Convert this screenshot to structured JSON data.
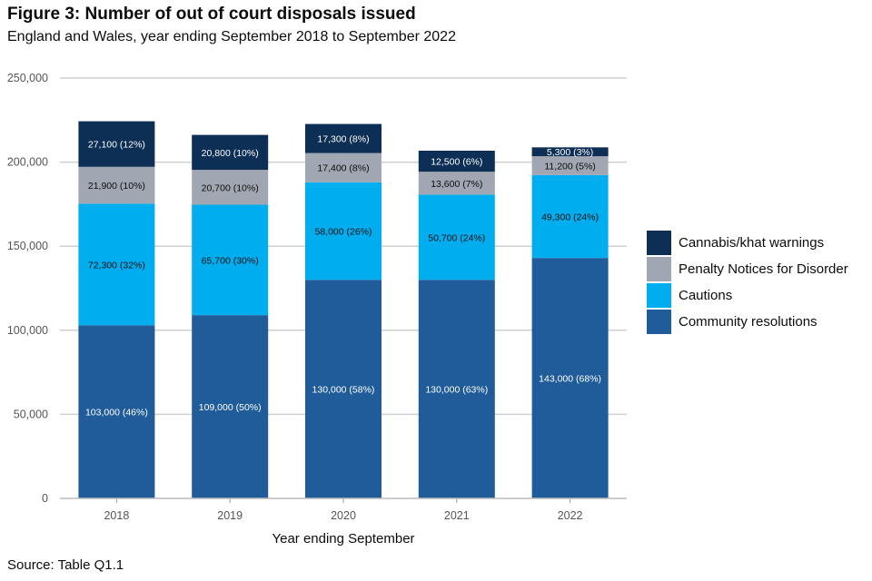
{
  "title": "Figure 3: Number of out of court disposals issued",
  "subtitle": "England and Wales, year ending September 2018 to September 2022",
  "source": "Source: Table Q1.1",
  "colors": {
    "community": "#1f5c99",
    "cautions": "#00aeef",
    "pnd": "#a0a7b2",
    "cannabis": "#0d2f55"
  },
  "chart_data": {
    "type": "bar",
    "stacked": true,
    "title": "Figure 3: Number of out of court disposals issued",
    "xlabel": "Year ending September",
    "ylabel": "",
    "ylim": [
      0,
      250000
    ],
    "yticks": [
      0,
      50000,
      100000,
      150000,
      200000,
      250000
    ],
    "ytick_labels": [
      "0",
      "50,000",
      "100,000",
      "150,000",
      "200,000",
      "250,000"
    ],
    "grid": true,
    "legend_position": "right",
    "categories": [
      "2018",
      "2019",
      "2020",
      "2021",
      "2022"
    ],
    "series": [
      {
        "name": "Community resolutions",
        "color_key": "community",
        "values": [
          103000,
          109000,
          130000,
          130000,
          143000
        ],
        "labels": [
          "103,000 (46%)",
          "109,000 (50%)",
          "130,000 (58%)",
          "130,000 (63%)",
          "143,000 (68%)"
        ]
      },
      {
        "name": "Cautions",
        "color_key": "cautions",
        "values": [
          72300,
          65700,
          58000,
          50700,
          49300
        ],
        "labels": [
          "72,300 (32%)",
          "65,700 (30%)",
          "58,000 (26%)",
          "50,700 (24%)",
          "49,300 (24%)"
        ]
      },
      {
        "name": "Penalty Notices for Disorder",
        "color_key": "pnd",
        "values": [
          21900,
          20700,
          17400,
          13600,
          11200
        ],
        "labels": [
          "21,900 (10%)",
          "20,700 (10%)",
          "17,400 (8%)",
          "13,600 (7%)",
          "11,200 (5%)"
        ]
      },
      {
        "name": "Cannabis/khat warnings",
        "color_key": "cannabis",
        "values": [
          27100,
          20800,
          17300,
          12500,
          5300
        ],
        "labels": [
          "27,100 (12%)",
          "20,800 (10%)",
          "17,300 (8%)",
          "12,500 (6%)",
          "5,300 (3%)"
        ]
      }
    ],
    "legend_order": [
      "Cannabis/khat warnings",
      "Penalty Notices for Disorder",
      "Cautions",
      "Community resolutions"
    ]
  }
}
